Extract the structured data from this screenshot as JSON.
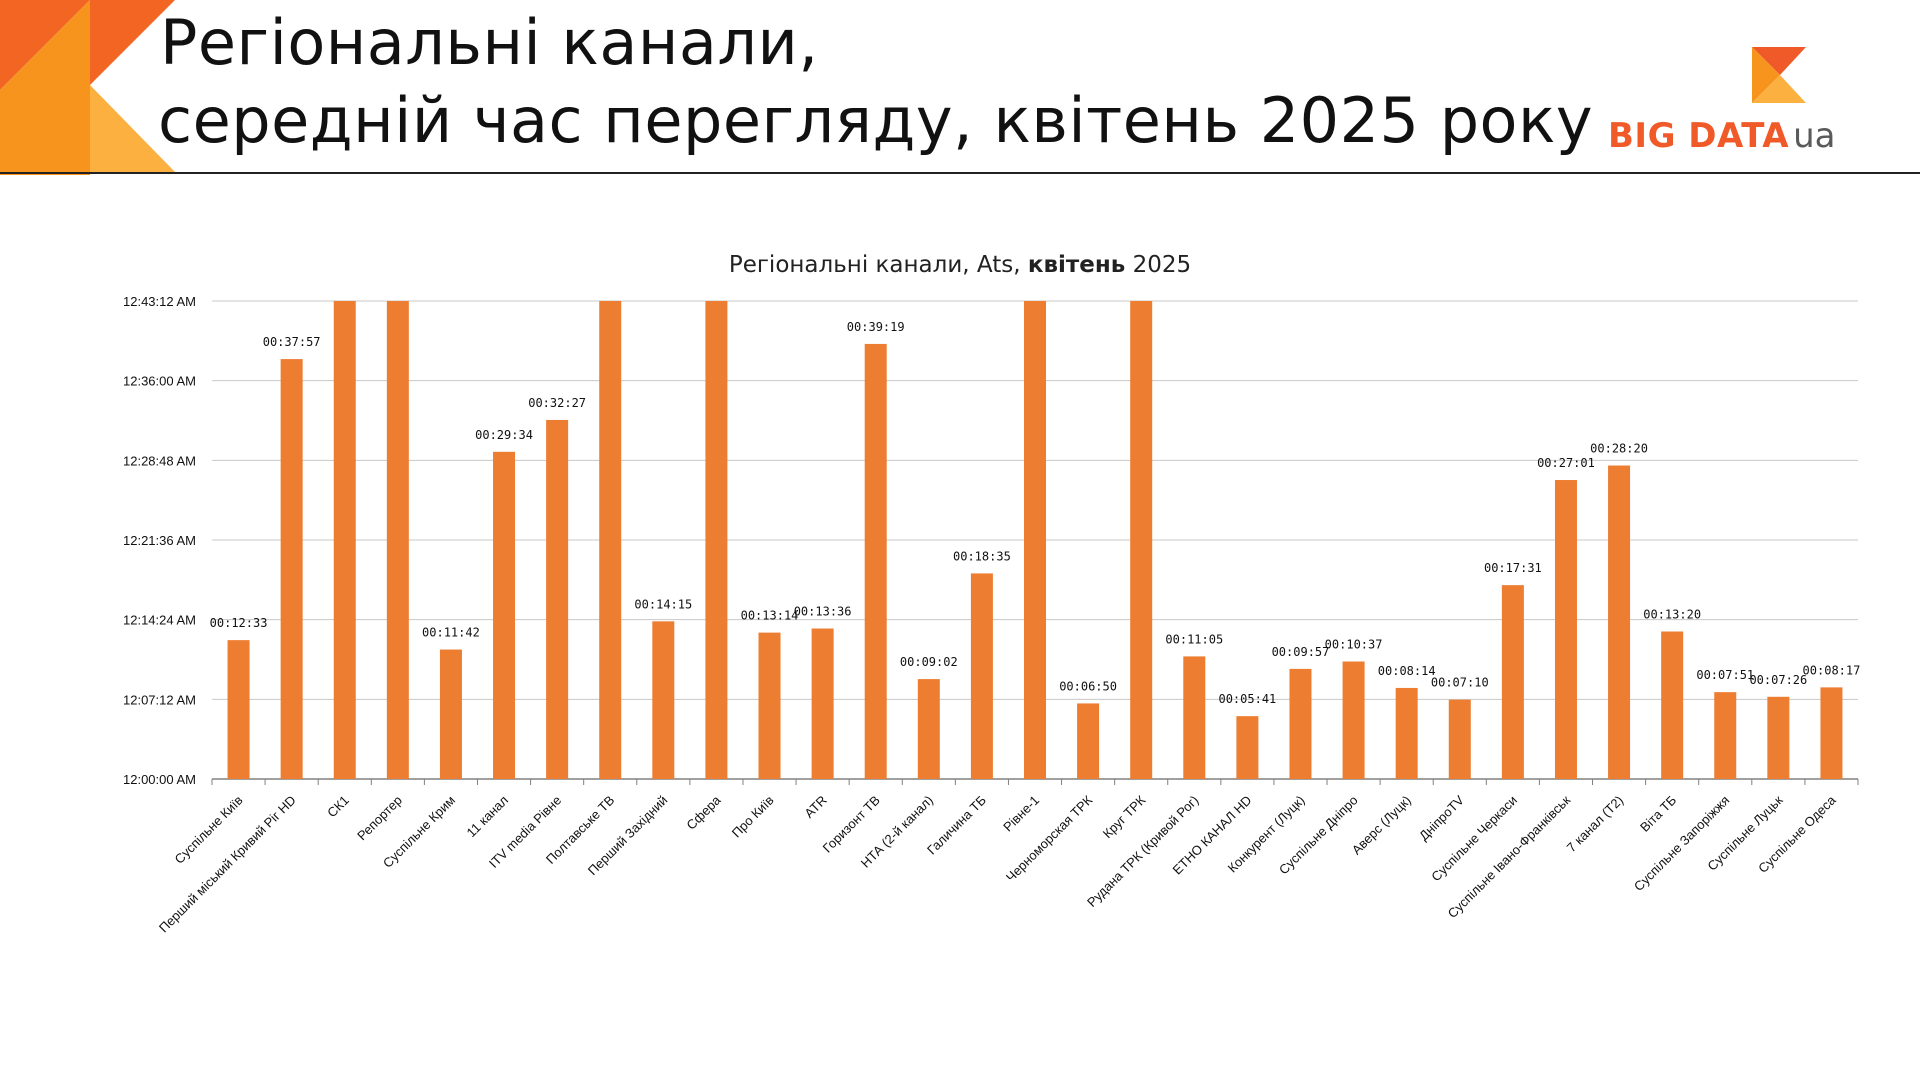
{
  "header": {
    "title_line1": "Регіональні канали,",
    "title_line2": "середній час перегляду, квітень 2025 року"
  },
  "logo": {
    "text": "BIG DATA",
    "suffix": "ua"
  },
  "colors": {
    "bar": "#ed7d31",
    "grid": "#c8c8c8",
    "accent_orange": "#f05a28",
    "accent_light": "#fbb040"
  },
  "chart_data": {
    "type": "bar",
    "title": {
      "prefix": "Регіональні канали, Ats, ",
      "bold": "квітень",
      "suffix": " 2025"
    },
    "xlabel": "",
    "ylabel": "",
    "y_unit": "minutes",
    "ylim": [
      0,
      43.2
    ],
    "grid": true,
    "legend": "none",
    "y_ticks": [
      {
        "value": 0,
        "label": "12:00:00 AM"
      },
      {
        "value": 7.2,
        "label": "12:07:12 AM"
      },
      {
        "value": 14.4,
        "label": "12:14:24 AM"
      },
      {
        "value": 21.6,
        "label": "12:21:36 AM"
      },
      {
        "value": 28.8,
        "label": "12:28:48 AM"
      },
      {
        "value": 36.0,
        "label": "12:36:00 AM"
      },
      {
        "value": 43.2,
        "label": "12:43:12 AM"
      }
    ],
    "categories": [
      "Суспільне Київ",
      "Перший міський Кривий Ріг HD",
      "СК1",
      "Репортер",
      "Суспільне Крим",
      "11 канал",
      "ITV media Рівне",
      "Полтавське ТВ",
      "Перший Західний",
      "Сфера",
      "Про Київ",
      "ATR",
      "Горизонт ТВ",
      "НТА (2-й канал)",
      "Галичина ТБ",
      "Рівне-1",
      "Черноморская ТРК",
      "Круг ТРК",
      "Рудана ТРК (Кривой Рог)",
      "ЕТНО КАНАЛ HD",
      "Конкурент (Луцк)",
      "Суспільне Дніпро",
      "Аверс (Луцк)",
      "ДніпроTV",
      "Суспільне Черкаси",
      "Суспільне Івано-Франківськ",
      "7 канал (Т2)",
      "Віта ТБ",
      "Суспільне Запоріжжя",
      "Суспільне Луцьк",
      "Суспільне Одеса"
    ],
    "values": [
      12.55,
      37.95,
      43.2,
      43.2,
      11.7,
      29.57,
      32.45,
      43.2,
      14.25,
      43.2,
      13.23,
      13.6,
      39.32,
      9.03,
      18.58,
      43.2,
      6.83,
      43.2,
      11.08,
      5.68,
      9.95,
      10.62,
      8.23,
      7.17,
      17.52,
      27.02,
      28.33,
      13.33,
      7.85,
      7.43,
      8.28
    ],
    "data_labels": [
      "00:12:33",
      "00:37:57",
      null,
      null,
      "00:11:42",
      "00:29:34",
      "00:32:27",
      null,
      "00:14:15",
      null,
      "00:13:14",
      "00:13:36",
      "00:39:19",
      "00:09:02",
      "00:18:35",
      null,
      "00:06:50",
      null,
      "00:11:05",
      "00:05:41",
      "00:09:57",
      "00:10:37",
      "00:08:14",
      "00:07:10",
      "00:17:31",
      "00:27:01",
      "00:28:20",
      "00:13:20",
      "00:07:51",
      "00:07:26",
      "00:08:17"
    ]
  }
}
